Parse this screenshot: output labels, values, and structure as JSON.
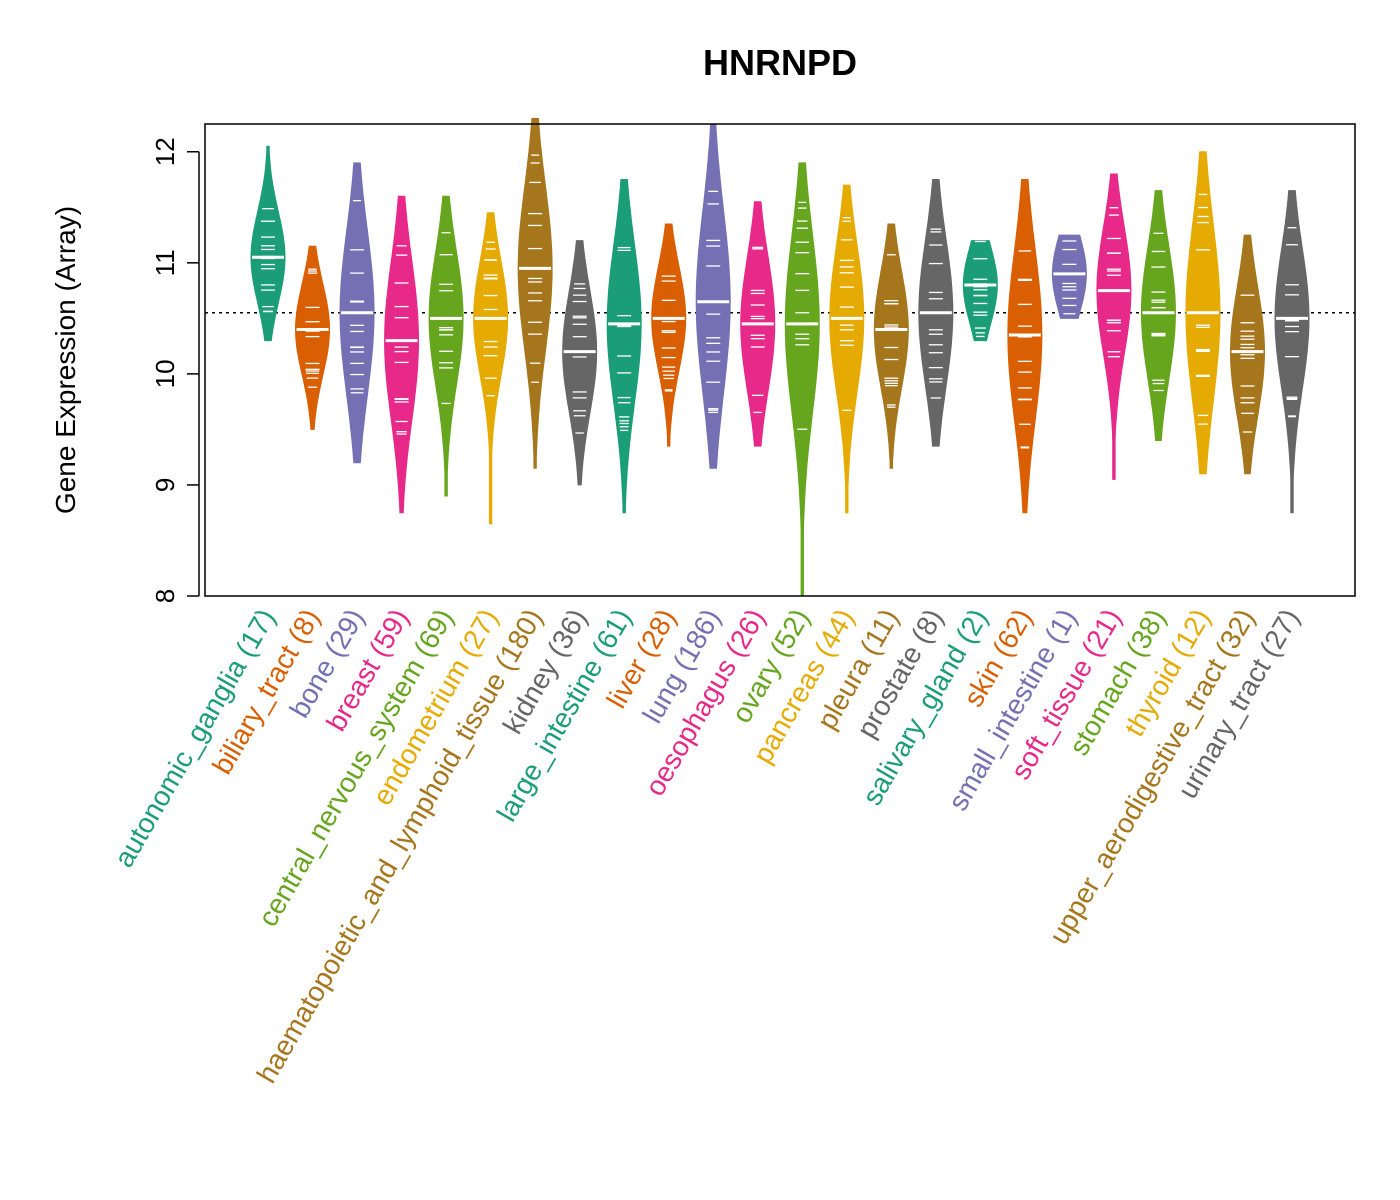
{
  "chart_data": {
    "type": "violin",
    "title": "HNRNPD",
    "xlabel": "",
    "ylabel": "Gene Expression (Array)",
    "ylim": [
      8,
      12.25
    ],
    "yticks": [
      "8",
      "9",
      "10",
      "11",
      "12"
    ],
    "reference_line": 10.55,
    "categories": [
      {
        "label": "autonomic_ganglia (17)",
        "color": "#1B9E77",
        "median": 11.05,
        "min": 10.3,
        "max": 12.05
      },
      {
        "label": "biliary_tract (8)",
        "color": "#D95F02",
        "median": 10.4,
        "min": 9.5,
        "max": 11.15
      },
      {
        "label": "bone (29)",
        "color": "#7570B3",
        "median": 10.55,
        "min": 9.2,
        "max": 11.9
      },
      {
        "label": "breast (59)",
        "color": "#E7298A",
        "median": 10.3,
        "min": 8.75,
        "max": 11.6
      },
      {
        "label": "central_nervous_system (69)",
        "color": "#66A61E",
        "median": 10.5,
        "min": 8.9,
        "max": 11.6
      },
      {
        "label": "endometrium (27)",
        "color": "#E6AB02",
        "median": 10.5,
        "min": 8.65,
        "max": 11.45
      },
      {
        "label": "haematopoietic_and_lymphoid_tissue (180)",
        "color": "#A6761D",
        "median": 10.95,
        "min": 9.15,
        "max": 12.3
      },
      {
        "label": "kidney (36)",
        "color": "#666666",
        "median": 10.2,
        "min": 9.0,
        "max": 11.2
      },
      {
        "label": "large_intestine (61)",
        "color": "#1B9E77",
        "median": 10.45,
        "min": 8.75,
        "max": 11.75
      },
      {
        "label": "liver (28)",
        "color": "#D95F02",
        "median": 10.5,
        "min": 9.35,
        "max": 11.35
      },
      {
        "label": "lung (186)",
        "color": "#7570B3",
        "median": 10.65,
        "min": 9.15,
        "max": 12.25
      },
      {
        "label": "oesophagus (26)",
        "color": "#E7298A",
        "median": 10.45,
        "min": 9.35,
        "max": 11.55
      },
      {
        "label": "ovary (52)",
        "color": "#66A61E",
        "median": 10.45,
        "min": 8.0,
        "max": 11.9
      },
      {
        "label": "pancreas (44)",
        "color": "#E6AB02",
        "median": 10.5,
        "min": 8.75,
        "max": 11.7
      },
      {
        "label": "pleura (11)",
        "color": "#A6761D",
        "median": 10.4,
        "min": 9.15,
        "max": 11.35
      },
      {
        "label": "prostate (8)",
        "color": "#666666",
        "median": 10.55,
        "min": 9.35,
        "max": 11.75
      },
      {
        "label": "salivary_gland (2)",
        "color": "#1B9E77",
        "median": 10.8,
        "min": 10.3,
        "max": 11.2
      },
      {
        "label": "skin (62)",
        "color": "#D95F02",
        "median": 10.35,
        "min": 8.75,
        "max": 11.75
      },
      {
        "label": "small_intestine (1)",
        "color": "#7570B3",
        "median": 10.9,
        "min": 10.5,
        "max": 11.25
      },
      {
        "label": "soft_tissue (21)",
        "color": "#E7298A",
        "median": 10.75,
        "min": 9.05,
        "max": 11.8
      },
      {
        "label": "stomach (38)",
        "color": "#66A61E",
        "median": 10.55,
        "min": 9.4,
        "max": 11.65
      },
      {
        "label": "thyroid (12)",
        "color": "#E6AB02",
        "median": 10.55,
        "min": 9.1,
        "max": 12.0
      },
      {
        "label": "upper_aerodigestive_tract (32)",
        "color": "#A6761D",
        "median": 10.2,
        "min": 9.1,
        "max": 11.25
      },
      {
        "label": "urinary_tract (27)",
        "color": "#666666",
        "median": 10.5,
        "min": 8.75,
        "max": 11.65
      }
    ]
  }
}
